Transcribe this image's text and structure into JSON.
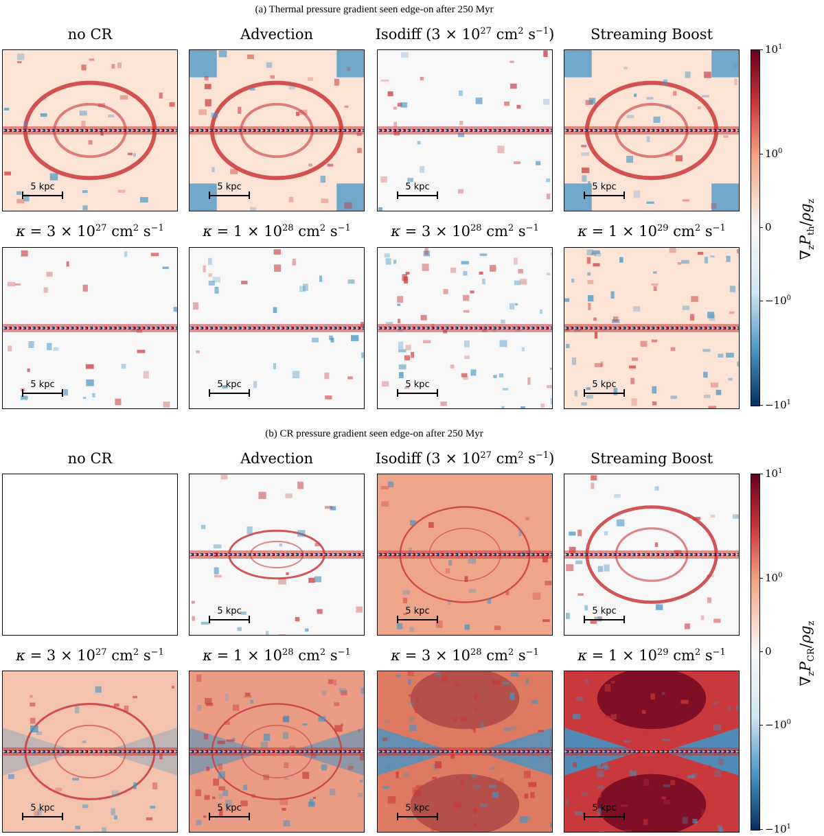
{
  "sections": [
    {
      "id": "a",
      "caption": "(a) Thermal pressure gradient seen edge-on after 250 Myr",
      "colorbar": {
        "title_html": "∇<sub>z</sub><i>P</i><sub>th</sub>/<i>ρg</i><sub>z</sub>",
        "ticks": [
          "10^1",
          "10^0",
          "0",
          "−10^0",
          "−10^1"
        ]
      },
      "panels": [
        {
          "title": "no CR",
          "scalebar": "5 kpc"
        },
        {
          "title": "Advection",
          "scalebar": "5 kpc"
        },
        {
          "title": "Isodiff (3 × 10^27 cm^2 s^−1)",
          "scalebar": "5 kpc"
        },
        {
          "title": "Streaming Boost",
          "scalebar": "5 kpc"
        },
        {
          "title": "κ = 3 × 10^27 cm^2 s^−1",
          "scalebar": "5 kpc"
        },
        {
          "title": "κ = 1 × 10^28 cm^2 s^−1",
          "scalebar": "5 kpc"
        },
        {
          "title": "κ = 3 × 10^28 cm^2 s^−1",
          "scalebar": "5 kpc"
        },
        {
          "title": "κ = 1 × 10^29 cm^2 s^−1",
          "scalebar": "5 kpc"
        }
      ]
    },
    {
      "id": "b",
      "caption": "(b) CR pressure gradient seen edge-on after 250 Myr",
      "colorbar": {
        "title_html": "∇<sub>z</sub><i>P</i><sub>CR</sub>/<i>ρg</i><sub>z</sub>",
        "ticks": [
          "10^1",
          "10^0",
          "0",
          "−10^0",
          "−10^1"
        ]
      },
      "panels": [
        {
          "title": "no CR",
          "scalebar": ""
        },
        {
          "title": "Advection",
          "scalebar": "5 kpc"
        },
        {
          "title": "Isodiff (3 × 10^27 cm^2 s^−1)",
          "scalebar": "5 kpc"
        },
        {
          "title": "Streaming Boost",
          "scalebar": "5 kpc"
        },
        {
          "title": "κ = 3 × 10^27 cm^2 s^−1",
          "scalebar": "5 kpc"
        },
        {
          "title": "κ = 1 × 10^28 cm^2 s^−1",
          "scalebar": "5 kpc"
        },
        {
          "title": "κ = 3 × 10^28 cm^2 s^−1",
          "scalebar": "5 kpc"
        },
        {
          "title": "κ = 1 × 10^29 cm^2 s^−1",
          "scalebar": "5 kpc"
        }
      ]
    }
  ],
  "colors": {
    "deep_red": "#67001f",
    "red": "#c9383a",
    "light_red": "#f4a582",
    "pale": "#fbe4d6",
    "white": "#f7f7f7",
    "light_blue": "#d1e5f0",
    "blue": "#4393c3",
    "deep_blue": "#053061"
  }
}
